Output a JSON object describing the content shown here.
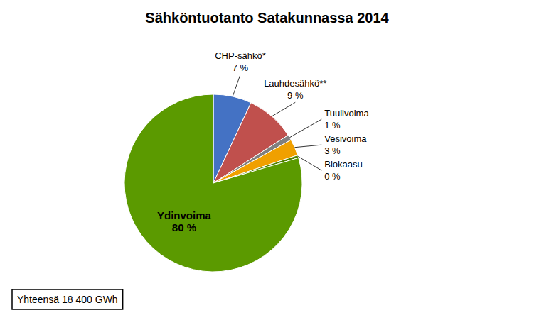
{
  "chart_data": {
    "type": "pie",
    "title": "Sähköntuotanto Satakunnassa 2014",
    "categories": [
      "CHP-sähkö*",
      "Lauhdesähkö**",
      "Tuulivoima",
      "Vesivoima",
      "Biokaasu",
      "Ydinvoima"
    ],
    "values": [
      7,
      9,
      1,
      3,
      0.5,
      80
    ],
    "value_labels": [
      "7 %",
      "9 %",
      "1 %",
      "3 %",
      "0 %",
      "80 %"
    ],
    "colors": [
      "#4472C4",
      "#C0504D",
      "#808080",
      "#F0A000",
      "#4F8100",
      "#5B9A00"
    ],
    "data_labels": true,
    "annotations": [
      "Yhteensä 18 400 GWh"
    ]
  }
}
